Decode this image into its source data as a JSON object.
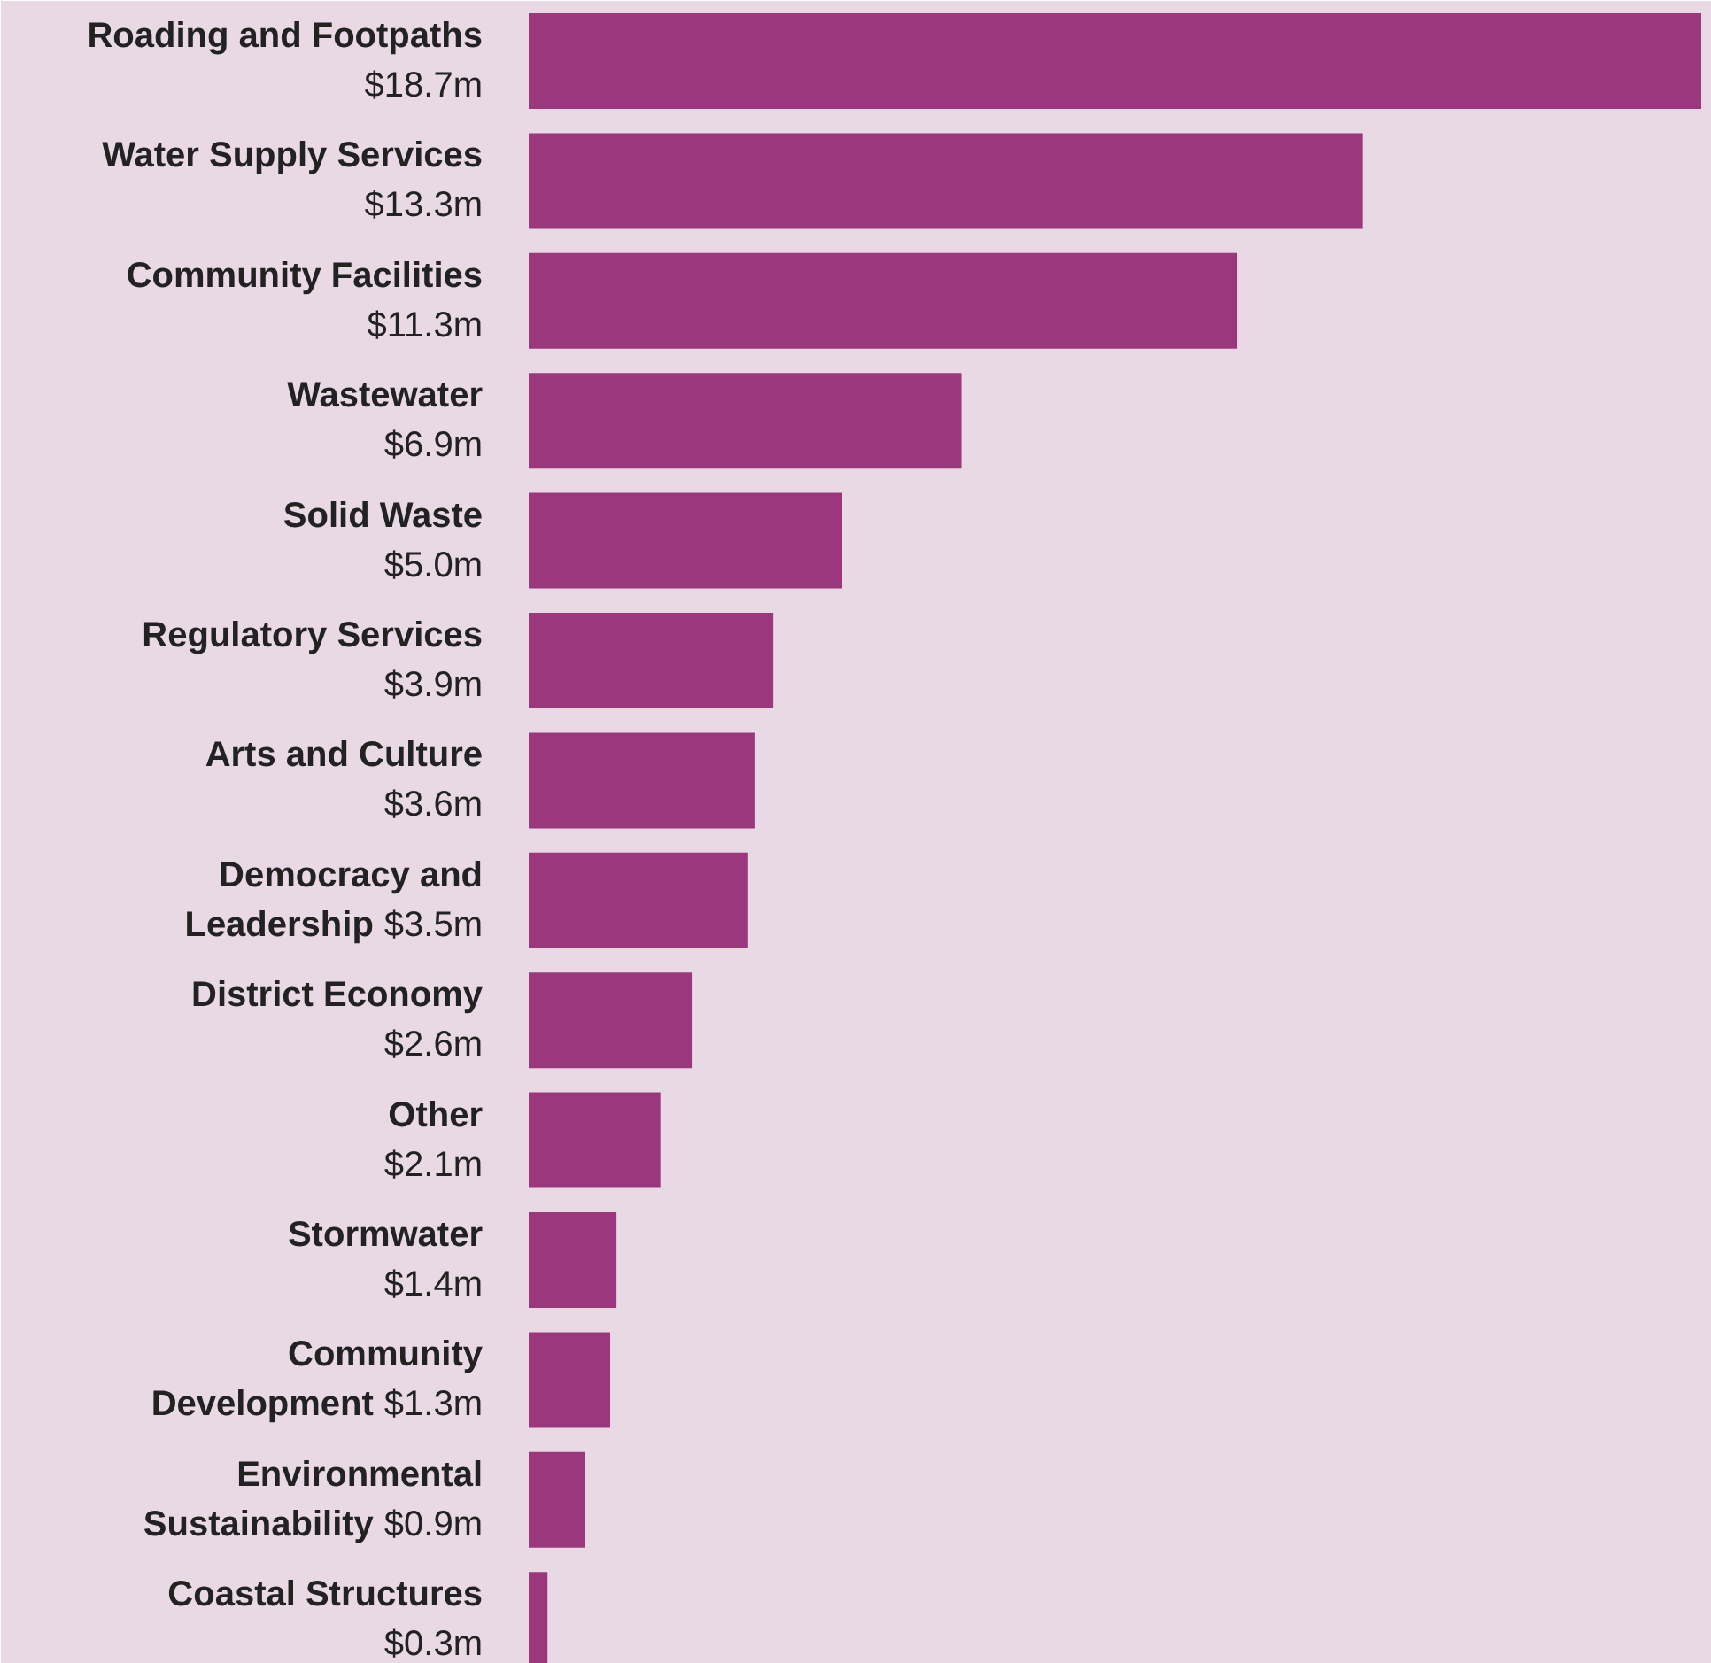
{
  "chart_data": {
    "type": "bar",
    "orientation": "horizontal",
    "categories": [
      "Roading and Footpaths",
      "Water Supply Services",
      "Community Facilities",
      "Wastewater",
      "Solid Waste",
      "Regulatory Services",
      "Arts and Culture",
      "Democracy and\nLeadership",
      "District Economy",
      "Other",
      "Stormwater",
      "Community\nDevelopment",
      "Environmental\nSustainability",
      "Coastal Structures"
    ],
    "values": [
      18.7,
      13.3,
      11.3,
      6.9,
      5.0,
      3.9,
      3.6,
      3.5,
      2.6,
      2.1,
      1.4,
      1.3,
      0.9,
      0.3
    ],
    "value_labels": [
      "$18.7m",
      "$13.3m",
      "$11.3m",
      "$6.9m",
      "$5.0m",
      "$3.9m",
      "$3.6m",
      "$3.5m",
      "$2.6m",
      "$2.1m",
      "$1.4m",
      "$1.3m",
      "$0.9m",
      "$0.3m"
    ],
    "color": "#9b377d"
  }
}
